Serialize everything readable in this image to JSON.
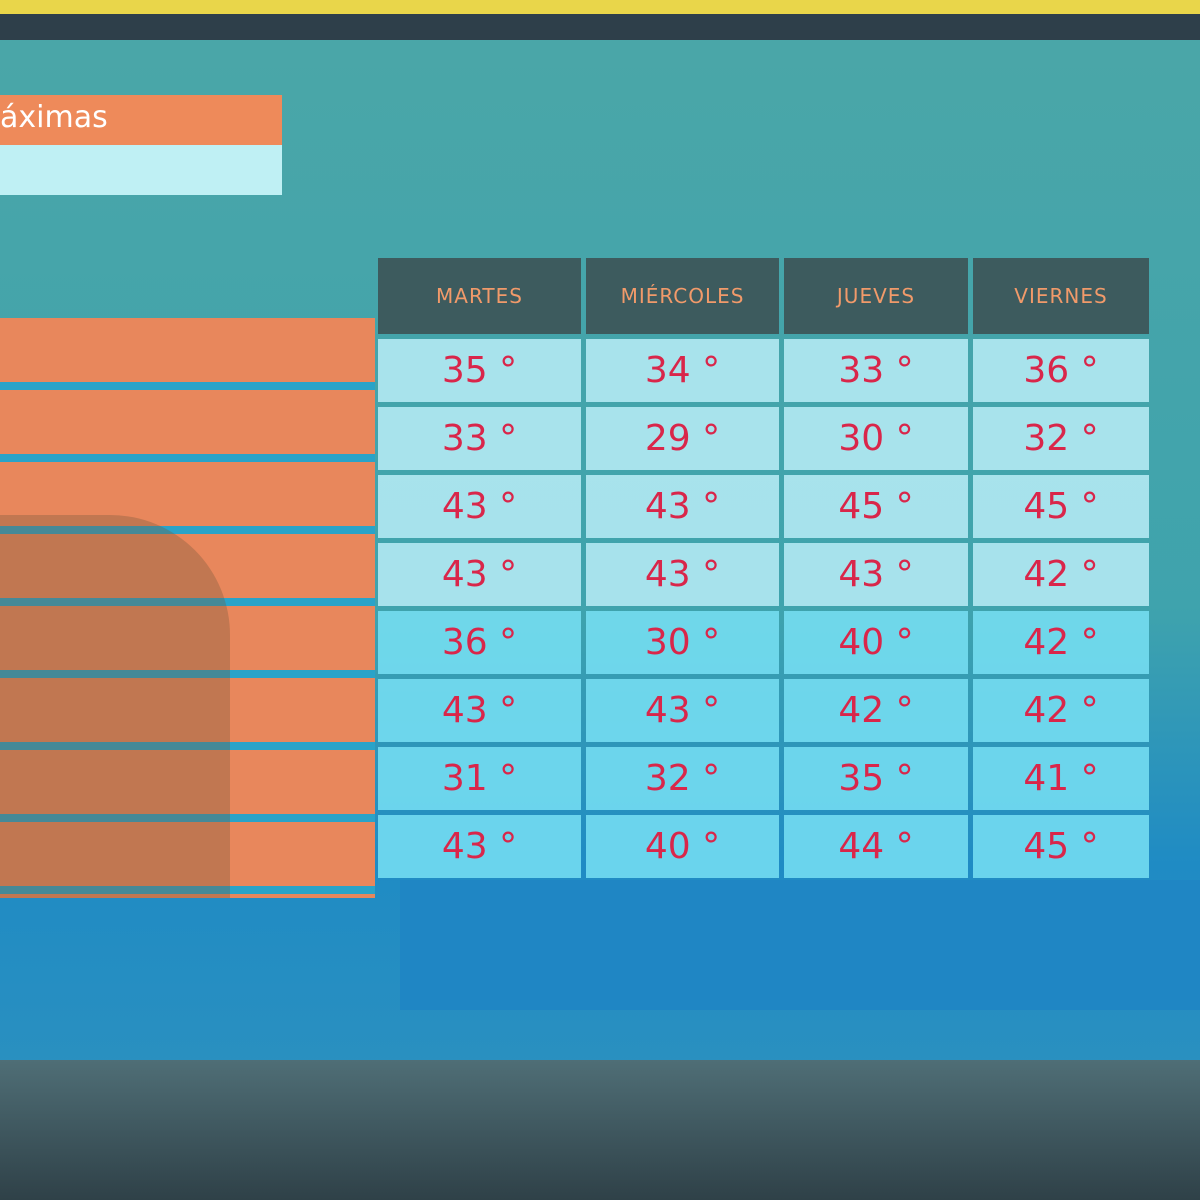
{
  "title": "áximas",
  "table": {
    "header": [
      "MARTES",
      "MIÉRCOLES",
      "JUEVES",
      "VIERNES"
    ],
    "rows": [
      [
        "35 °",
        "34 °",
        "33 °",
        "36 °"
      ],
      [
        "33 °",
        "29 °",
        "30 °",
        "32 °"
      ],
      [
        "43 °",
        "43 °",
        "45 °",
        "45 °"
      ],
      [
        "43 °",
        "43 °",
        "43 °",
        "42 °"
      ],
      [
        "36 °",
        "30 °",
        "40 °",
        "42 °"
      ],
      [
        "43 °",
        "43 °",
        "42 °",
        "42 °"
      ],
      [
        "31 °",
        "32 °",
        "35 °",
        "41 °"
      ],
      [
        "43 °",
        "40 °",
        "44 °",
        "45 °"
      ]
    ]
  }
}
